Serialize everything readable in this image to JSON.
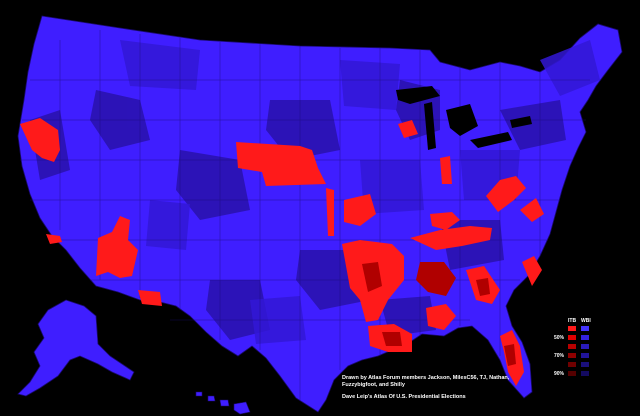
{
  "credits": {
    "line1": "Drawn by Atlas Forum members Jackson, MilesC56, TJ, Nathan, Fuzzybigfoot, and Shilly",
    "line2": "Dave Leip's Atlas Of U.S. Presidential Elections"
  },
  "legend": {
    "header_a": "ITB",
    "header_b": "WBI",
    "rows": [
      {
        "label": "",
        "color_a": "#ff1a1a",
        "color_b": "#4433ff"
      },
      {
        "label": "50%",
        "color_a": "#e00000",
        "color_b": "#3322dd"
      },
      {
        "label": "",
        "color_a": "#b80000",
        "color_b": "#2a1bbb"
      },
      {
        "label": "70%",
        "color_a": "#900000",
        "color_b": "#21149a"
      },
      {
        "label": "",
        "color_a": "#700000",
        "color_b": "#1a0f7c"
      },
      {
        "label": "90%",
        "color_a": "#550000",
        "color_b": "#130a60"
      }
    ]
  },
  "colors": {
    "background": "#000000",
    "blue_base": "#3f1eff",
    "blue_mid": "#3318d6",
    "blue_dark": "#2a12b0",
    "red": "#ff1a1a",
    "red_dark": "#b00000",
    "border": "#1a0a70"
  }
}
